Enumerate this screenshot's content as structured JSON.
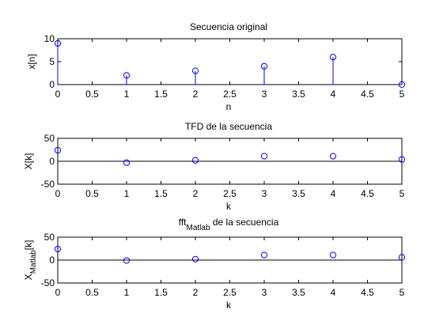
{
  "chart_data": [
    {
      "type": "stem",
      "title": "Secuencia original",
      "xlabel": "n",
      "ylabel": "x[n]",
      "xlim": [
        0,
        5
      ],
      "ylim": [
        0,
        10
      ],
      "xticks": [
        "0",
        "0.5",
        "1",
        "1.5",
        "2",
        "2.5",
        "3",
        "3.5",
        "4",
        "4.5",
        "5"
      ],
      "yticks": [
        "0",
        "5",
        "10"
      ],
      "baseline": false,
      "x": [
        0,
        1,
        2,
        3,
        4,
        5
      ],
      "y": [
        9,
        2,
        3,
        4,
        6,
        0
      ],
      "color": "#0000ff"
    },
    {
      "type": "scatter",
      "title": "TFD de la secuencia",
      "xlabel": "k",
      "ylabel": "X[k]",
      "xlim": [
        0,
        5
      ],
      "ylim": [
        -50,
        50
      ],
      "xticks": [
        "0",
        "0.5",
        "1",
        "1.5",
        "2",
        "2.5",
        "3",
        "3.5",
        "4",
        "4.5",
        "5"
      ],
      "yticks": [
        "-50",
        "0",
        "50"
      ],
      "baseline": true,
      "x": [
        0,
        1,
        2,
        3,
        4,
        5
      ],
      "y": [
        24,
        -3,
        2,
        11,
        11,
        4
      ],
      "color": "#0000ff"
    },
    {
      "type": "scatter",
      "title": "fft",
      "title_sub": "Matlab",
      "title_rest": " de la secuencia",
      "xlabel": "k",
      "ylabel": "X",
      "ylabel_sub": "Matlab",
      "ylabel_rest": "[k]",
      "xlim": [
        0,
        5
      ],
      "ylim": [
        -50,
        50
      ],
      "xticks": [
        "0",
        "0.5",
        "1",
        "1.5",
        "2",
        "2.5",
        "3",
        "3.5",
        "4",
        "4.5",
        "5"
      ],
      "yticks": [
        "-50",
        "0",
        "50"
      ],
      "baseline": true,
      "x": [
        0,
        1,
        2,
        3,
        4,
        5
      ],
      "y": [
        24,
        -1,
        2,
        11,
        11,
        6
      ],
      "color": "#0000ff"
    }
  ]
}
